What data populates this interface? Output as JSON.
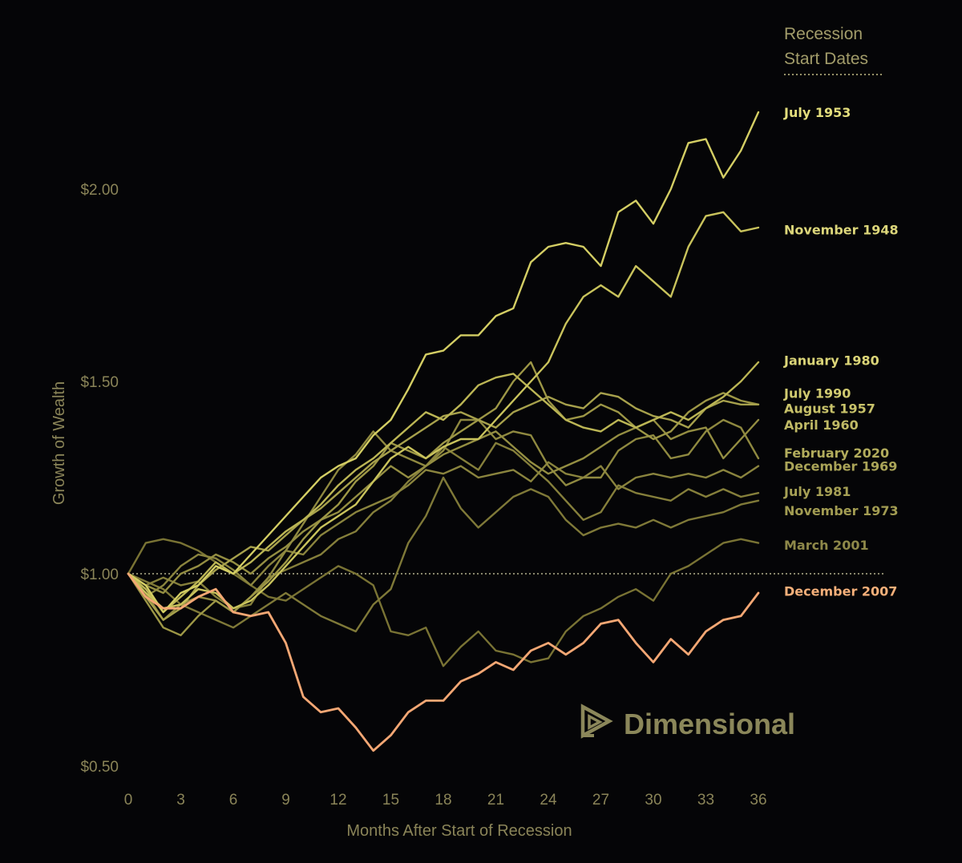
{
  "chart_data": {
    "type": "line",
    "xlabel": "Months After Start of Recession",
    "ylabel": "Growth of Wealth",
    "xlim": [
      0,
      36
    ],
    "ylim": [
      0.5,
      2.5
    ],
    "x_ticks": [
      0,
      3,
      6,
      9,
      12,
      15,
      18,
      21,
      24,
      27,
      30,
      33,
      36
    ],
    "y_ticks": [
      {
        "value": 0.5,
        "label": "$0.50"
      },
      {
        "value": 1.0,
        "label": "$1.00"
      },
      {
        "value": 1.5,
        "label": "$1.50"
      },
      {
        "value": 2.0,
        "label": "$2.00"
      }
    ],
    "reference_line": 1.0,
    "legend_title": [
      "Recession",
      "Start Dates"
    ],
    "series": [
      {
        "name": "July 1953",
        "color": "#d4ce64",
        "label_color": "#e3dd7c",
        "label_value": 2.2,
        "values": [
          1.0,
          0.97,
          0.9,
          0.95,
          0.97,
          1.02,
          1.0,
          1.05,
          1.1,
          1.15,
          1.2,
          1.25,
          1.28,
          1.3,
          1.36,
          1.4,
          1.48,
          1.57,
          1.58,
          1.62,
          1.62,
          1.67,
          1.69,
          1.81,
          1.85,
          1.86,
          1.85,
          1.8,
          1.94,
          1.97,
          1.91,
          2.0,
          2.12,
          2.13,
          2.03,
          2.1,
          2.2
        ]
      },
      {
        "name": "November 1948",
        "color": "#c9c35c",
        "label_color": "#dcd67a",
        "label_value": 1.895,
        "values": [
          1.0,
          0.95,
          0.91,
          0.92,
          0.96,
          0.95,
          0.91,
          0.93,
          0.97,
          1.02,
          1.07,
          1.12,
          1.15,
          1.18,
          1.24,
          1.3,
          1.33,
          1.3,
          1.33,
          1.35,
          1.35,
          1.4,
          1.45,
          1.5,
          1.55,
          1.65,
          1.72,
          1.75,
          1.72,
          1.8,
          1.76,
          1.72,
          1.85,
          1.93,
          1.94,
          1.89,
          1.9
        ]
      },
      {
        "name": "January 1980",
        "color": "#bcb655",
        "label_color": "#dbd578",
        "label_value": 1.555,
        "values": [
          1.0,
          0.96,
          0.9,
          0.94,
          0.98,
          1.03,
          1.0,
          1.03,
          1.07,
          1.11,
          1.14,
          1.18,
          1.23,
          1.27,
          1.3,
          1.34,
          1.38,
          1.42,
          1.4,
          1.44,
          1.49,
          1.51,
          1.52,
          1.48,
          1.44,
          1.4,
          1.38,
          1.37,
          1.4,
          1.38,
          1.4,
          1.42,
          1.4,
          1.43,
          1.46,
          1.5,
          1.55
        ]
      },
      {
        "name": "July 1990",
        "color": "#a7a14c",
        "label_color": "#d0ca70",
        "label_value": 1.47,
        "values": [
          1.0,
          0.94,
          0.88,
          0.91,
          0.97,
          1.01,
          1.04,
          1.07,
          1.06,
          1.1,
          1.14,
          1.17,
          1.21,
          1.25,
          1.29,
          1.32,
          1.35,
          1.38,
          1.41,
          1.42,
          1.4,
          1.38,
          1.42,
          1.44,
          1.46,
          1.44,
          1.43,
          1.47,
          1.46,
          1.43,
          1.41,
          1.4,
          1.38,
          1.43,
          1.45,
          1.44,
          1.44
        ]
      },
      {
        "name": "August 1957",
        "color": "#9d9746",
        "label_color": "#c8c26a",
        "label_value": 1.43,
        "values": [
          1.0,
          0.93,
          0.86,
          0.84,
          0.89,
          0.93,
          0.9,
          0.94,
          0.98,
          1.03,
          1.09,
          1.14,
          1.18,
          1.24,
          1.28,
          1.34,
          1.32,
          1.3,
          1.34,
          1.37,
          1.4,
          1.43,
          1.5,
          1.55,
          1.45,
          1.4,
          1.41,
          1.44,
          1.42,
          1.38,
          1.35,
          1.37,
          1.42,
          1.45,
          1.47,
          1.45,
          1.44
        ]
      },
      {
        "name": "April 1960",
        "color": "#948e42",
        "label_color": "#bfb965",
        "label_value": 1.388,
        "values": [
          1.0,
          0.97,
          0.95,
          1.0,
          1.02,
          1.05,
          1.03,
          1.0,
          1.04,
          1.07,
          1.11,
          1.14,
          1.16,
          1.2,
          1.24,
          1.28,
          1.25,
          1.28,
          1.31,
          1.33,
          1.35,
          1.37,
          1.33,
          1.29,
          1.26,
          1.28,
          1.3,
          1.33,
          1.36,
          1.38,
          1.4,
          1.35,
          1.37,
          1.38,
          1.3,
          1.35,
          1.4
        ]
      },
      {
        "name": "February 2020",
        "color": "#8f8940",
        "label_color": "#b2ac5c",
        "label_value": 1.315,
        "values": [
          1.0,
          0.95,
          0.88,
          0.92,
          0.94,
          0.93,
          0.9,
          0.94,
          0.99,
          1.06,
          1.13,
          1.2,
          1.27,
          1.31,
          1.37,
          1.32,
          1.3,
          1.28,
          1.32,
          1.4,
          1.4,
          1.35,
          1.37,
          1.36,
          1.28,
          1.23,
          1.25,
          1.25,
          1.32,
          1.35,
          1.36,
          1.3,
          1.31,
          1.37,
          1.4,
          1.38,
          1.3
        ]
      },
      {
        "name": "December 1969",
        "color": "#8a843e",
        "label_color": "#aaa458",
        "label_value": 1.28,
        "values": [
          1.0,
          0.94,
          0.97,
          1.02,
          1.05,
          1.04,
          1.01,
          0.97,
          1.02,
          1.06,
          1.05,
          1.1,
          1.13,
          1.16,
          1.18,
          1.2,
          1.23,
          1.27,
          1.26,
          1.28,
          1.25,
          1.26,
          1.27,
          1.24,
          1.29,
          1.26,
          1.25,
          1.28,
          1.22,
          1.25,
          1.26,
          1.25,
          1.26,
          1.25,
          1.27,
          1.25,
          1.28
        ]
      },
      {
        "name": "July 1981",
        "color": "#857f3b",
        "label_color": "#a6a055",
        "label_value": 1.215,
        "values": [
          1.0,
          0.97,
          0.99,
          0.97,
          0.98,
          0.94,
          0.91,
          0.92,
          0.99,
          1.01,
          1.03,
          1.05,
          1.09,
          1.11,
          1.16,
          1.19,
          1.24,
          1.28,
          1.33,
          1.3,
          1.27,
          1.34,
          1.32,
          1.28,
          1.24,
          1.19,
          1.14,
          1.16,
          1.23,
          1.21,
          1.2,
          1.19,
          1.22,
          1.2,
          1.22,
          1.2,
          1.21
        ]
      },
      {
        "name": "November 1973",
        "color": "#7f7938",
        "label_color": "#a29c52",
        "label_value": 1.165,
        "values": [
          1.0,
          0.98,
          0.96,
          0.92,
          0.9,
          0.88,
          0.86,
          0.89,
          0.92,
          0.95,
          0.92,
          0.89,
          0.87,
          0.85,
          0.92,
          0.96,
          1.08,
          1.15,
          1.25,
          1.17,
          1.12,
          1.16,
          1.2,
          1.22,
          1.2,
          1.14,
          1.1,
          1.12,
          1.13,
          1.12,
          1.14,
          1.12,
          1.14,
          1.15,
          1.16,
          1.18,
          1.19
        ]
      },
      {
        "name": "March 2001",
        "color": "#797334",
        "label_color": "#8e8849",
        "label_value": 1.075,
        "values": [
          1.0,
          1.08,
          1.09,
          1.08,
          1.06,
          1.03,
          1.0,
          0.97,
          0.94,
          0.93,
          0.96,
          0.99,
          1.02,
          1.0,
          0.97,
          0.85,
          0.84,
          0.86,
          0.76,
          0.81,
          0.85,
          0.8,
          0.79,
          0.77,
          0.78,
          0.85,
          0.89,
          0.91,
          0.94,
          0.96,
          0.93,
          1.0,
          1.02,
          1.05,
          1.08,
          1.09,
          1.08
        ]
      },
      {
        "name": "December 2007",
        "color": "#f4a774",
        "label_color": "#f6b07a",
        "label_value": 0.955,
        "values": [
          1.0,
          0.94,
          0.91,
          0.91,
          0.94,
          0.96,
          0.9,
          0.89,
          0.9,
          0.82,
          0.68,
          0.64,
          0.65,
          0.6,
          0.54,
          0.58,
          0.64,
          0.67,
          0.67,
          0.72,
          0.74,
          0.77,
          0.75,
          0.8,
          0.82,
          0.79,
          0.82,
          0.87,
          0.88,
          0.82,
          0.77,
          0.83,
          0.79,
          0.85,
          0.88,
          0.89,
          0.95
        ]
      }
    ]
  },
  "logo": {
    "text": "Dimensional",
    "icon": "dimensional-logo-icon"
  }
}
